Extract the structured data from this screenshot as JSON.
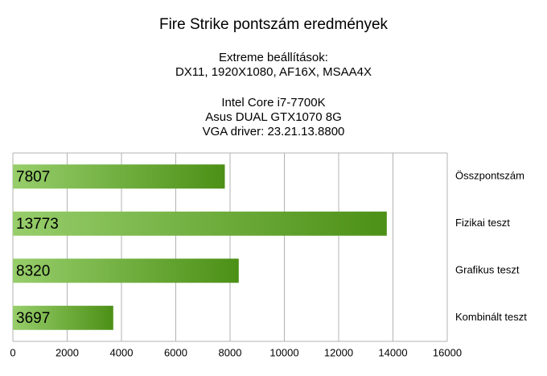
{
  "chart_data": {
    "type": "bar",
    "orientation": "horizontal",
    "title": "Fire Strike pontszám eredmények",
    "subtitle": [
      "Extreme beállítások:",
      "DX11, 1920X1080, AF16X, MSAA4X",
      "Intel Core i7-7700K",
      "Asus DUAL GTX1070 8G",
      "VGA driver: 23.21.13.8800"
    ],
    "categories": [
      "Összpontszám",
      "Fizikai teszt",
      "Grafikus teszt",
      "Kombinált teszt"
    ],
    "values": [
      7807,
      13773,
      8320,
      3697
    ],
    "color": "#5fb41c",
    "xlim": [
      0,
      16000
    ],
    "xticks": [
      0,
      2000,
      4000,
      6000,
      8000,
      10000,
      12000,
      14000,
      16000
    ],
    "grid": true
  }
}
